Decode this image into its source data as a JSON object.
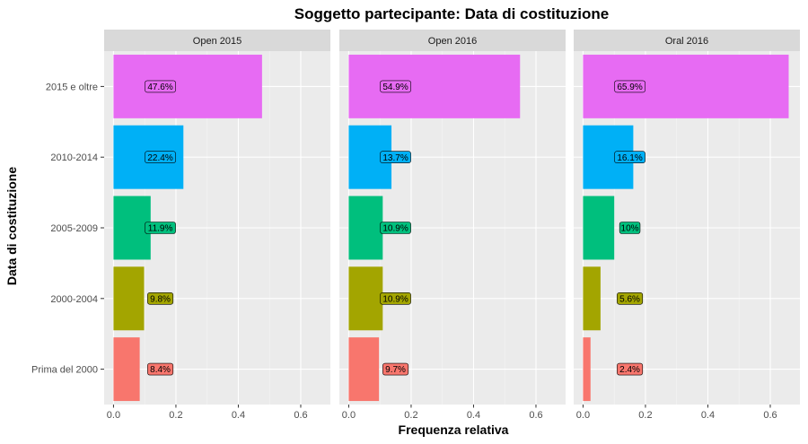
{
  "chart_data": {
    "type": "bar",
    "orientation": "horizontal",
    "title": "Soggetto partecipante: Data di costituzione",
    "xlabel": "Frequenza relativa",
    "ylabel": "Data di costituzione",
    "categories": [
      "2015 e oltre",
      "2010-2014",
      "2005-2009",
      "2000-2004",
      "Prima del 2000"
    ],
    "category_colors": [
      "#E76BF3",
      "#00B0F6",
      "#00BF7D",
      "#A3A500",
      "#F8766D"
    ],
    "xlim": [
      -0.03,
      0.695
    ],
    "xticks": [
      0.0,
      0.2,
      0.4,
      0.6
    ],
    "xtick_labels": [
      "0.0",
      "0.2",
      "0.4",
      "0.6"
    ],
    "grid": true,
    "panels": [
      {
        "name": "Open 2015",
        "values": [
          0.476,
          0.224,
          0.119,
          0.098,
          0.084
        ],
        "labels": [
          "47.6%",
          "22.4%",
          "11.9%",
          "9.8%",
          "8.4%"
        ]
      },
      {
        "name": "Open 2016",
        "values": [
          0.549,
          0.137,
          0.109,
          0.109,
          0.097
        ],
        "labels": [
          "54.9%",
          "13.7%",
          "10.9%",
          "10.9%",
          "9.7%"
        ]
      },
      {
        "name": "Oral 2016",
        "values": [
          0.659,
          0.161,
          0.1,
          0.056,
          0.024
        ],
        "labels": [
          "65.9%",
          "16.1%",
          "10%",
          "5.6%",
          "2.4%"
        ]
      }
    ]
  }
}
